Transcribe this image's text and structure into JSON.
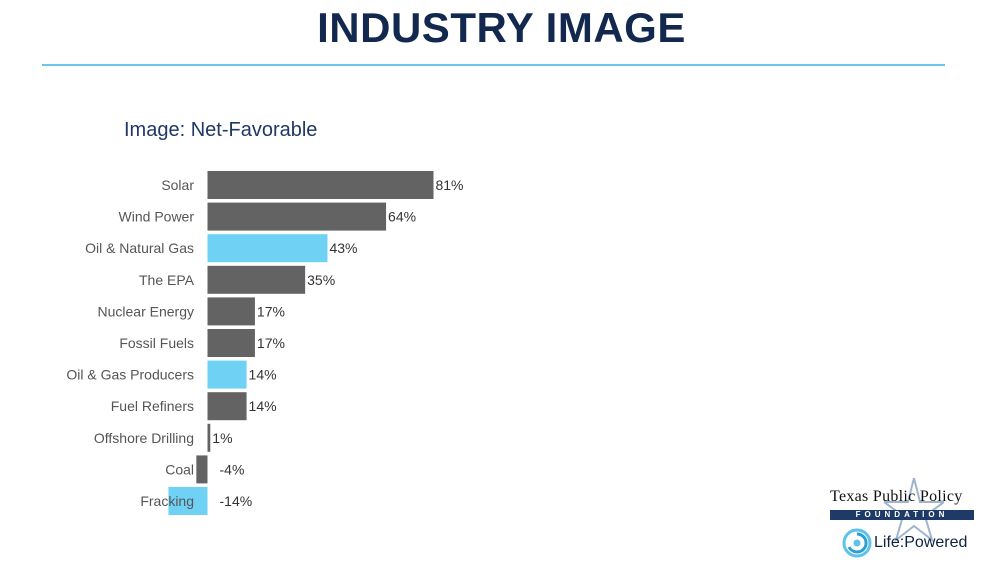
{
  "slide": {
    "title": "INDUSTRY IMAGE"
  },
  "colors": {
    "title": "#13284f",
    "rule": "#6cc6ea",
    "bar_gray": "#636363",
    "bar_highlight": "#6fd1f4"
  },
  "chart_data": {
    "type": "bar",
    "orientation": "horizontal",
    "title": "Image: Net-Favorable",
    "categories": [
      "Solar",
      "Wind Power",
      "Oil & Natural Gas",
      "The EPA",
      "Nuclear Energy",
      "Fossil Fuels",
      "Oil & Gas Producers",
      "Fuel Refiners",
      "Offshore Drilling",
      "Coal",
      "Fracking"
    ],
    "values": [
      81,
      64,
      43,
      35,
      17,
      17,
      14,
      14,
      1,
      -4,
      -14
    ],
    "value_labels": [
      "81%",
      "64%",
      "43%",
      "35%",
      "17%",
      "17%",
      "14%",
      "14%",
      "1%",
      "-4%",
      "-14%"
    ],
    "highlighted": [
      false,
      false,
      true,
      false,
      false,
      false,
      true,
      false,
      false,
      false,
      true
    ],
    "xlim": [
      -14,
      81
    ],
    "grid": false,
    "legend": "none"
  },
  "branding": {
    "tppf_name": "Texas Public Policy",
    "tppf_sub": "FOUNDATION",
    "life_powered": "Life:Powered",
    "icons": [
      "star-icon",
      "swirl-icon"
    ]
  }
}
